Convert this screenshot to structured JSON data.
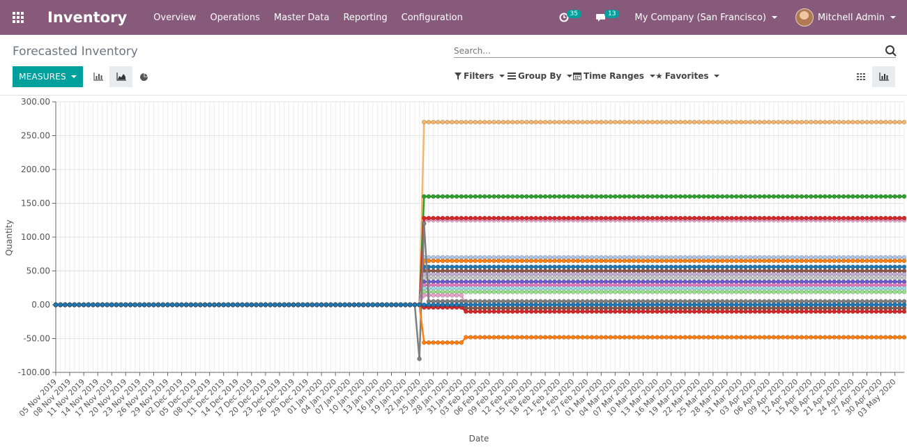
{
  "navbar": {
    "brand": "Inventory",
    "menu": [
      "Overview",
      "Operations",
      "Master Data",
      "Reporting",
      "Configuration"
    ],
    "activity_count": "35",
    "message_count": "13",
    "company": "My Company (San Francisco)",
    "user": "Mitchell Admin",
    "icons": {
      "apps": "apps-grid-icon",
      "activity": "clock-icon",
      "messages": "chat-icon"
    }
  },
  "control_panel": {
    "title": "Forecasted Inventory",
    "search_placeholder": "Search...",
    "measures_label": "MEASURES",
    "filters_label": "Filters",
    "group_by_label": "Group By",
    "time_ranges_label": "Time Ranges",
    "favorites_label": "Favorites",
    "active_chart_mode": "line",
    "active_view": "graph"
  },
  "colors": {
    "navbar": "#875a7b",
    "primary": "#00a09d"
  },
  "chart_data": {
    "type": "line",
    "xlabel": "Date",
    "ylabel": "Quantity",
    "ylim": [
      -100,
      300
    ],
    "yticks": [
      "300.00",
      "250.00",
      "200.00",
      "150.00",
      "100.00",
      "50.00",
      "0.00",
      "-50.00",
      "-100.00"
    ],
    "xticks": [
      "05 Nov 2019",
      "08 Nov 2019",
      "11 Nov 2019",
      "14 Nov 2019",
      "17 Nov 2019",
      "20 Nov 2019",
      "23 Nov 2019",
      "26 Nov 2019",
      "29 Nov 2019",
      "02 Dec 2019",
      "05 Dec 2019",
      "08 Dec 2019",
      "11 Dec 2019",
      "14 Dec 2019",
      "17 Dec 2019",
      "20 Dec 2019",
      "23 Dec 2019",
      "26 Dec 2019",
      "29 Dec 2019",
      "01 Jan 2020",
      "04 Jan 2020",
      "07 Jan 2020",
      "10 Jan 2020",
      "13 Jan 2020",
      "16 Jan 2020",
      "19 Jan 2020",
      "22 Jan 2020",
      "25 Jan 2020",
      "28 Jan 2020",
      "31 Jan 2020",
      "03 Feb 2020",
      "06 Feb 2020",
      "09 Feb 2020",
      "12 Feb 2020",
      "15 Feb 2020",
      "18 Feb 2020",
      "21 Feb 2020",
      "24 Feb 2020",
      "27 Feb 2020",
      "01 Mar 2020",
      "04 Mar 2020",
      "07 Mar 2020",
      "10 Mar 2020",
      "13 Mar 2020",
      "16 Mar 2020",
      "19 Mar 2020",
      "22 Mar 2020",
      "25 Mar 2020",
      "28 Mar 2020",
      "31 Mar 2020",
      "03 Apr 2020",
      "06 Apr 2020",
      "09 Apr 2020",
      "12 Apr 2020",
      "15 Apr 2020",
      "18 Apr 2020",
      "21 Apr 2020",
      "24 Apr 2020",
      "27 Apr 2020",
      "30 Apr 2020",
      "03 May 2020"
    ],
    "x_start": "2019-11-05",
    "x_end": "2020-05-05",
    "grid": true,
    "legend": "none",
    "series": [
      {
        "color": "#f4b46c",
        "points": [
          [
            "2019-11-05",
            0
          ],
          [
            "2020-01-22",
            0
          ],
          [
            "2020-01-23",
            270
          ],
          [
            "2020-05-05",
            270
          ]
        ]
      },
      {
        "color": "#2ca02c",
        "points": [
          [
            "2019-11-05",
            0
          ],
          [
            "2020-01-22",
            0
          ],
          [
            "2020-01-23",
            160
          ],
          [
            "2020-05-05",
            160
          ]
        ]
      },
      {
        "color": "#e8a0c8",
        "points": [
          [
            "2019-11-05",
            0
          ],
          [
            "2020-01-22",
            0
          ],
          [
            "2020-01-23",
            125
          ],
          [
            "2020-05-05",
            125
          ]
        ]
      },
      {
        "color": "#d62728",
        "points": [
          [
            "2019-11-05",
            0
          ],
          [
            "2020-01-22",
            0
          ],
          [
            "2020-01-23",
            128
          ],
          [
            "2020-05-05",
            128
          ]
        ]
      },
      {
        "color": "#aec7e8",
        "points": [
          [
            "2019-11-05",
            0
          ],
          [
            "2020-01-22",
            0
          ],
          [
            "2020-01-23",
            70
          ],
          [
            "2020-05-05",
            70
          ]
        ]
      },
      {
        "color": "#ff7f0e",
        "points": [
          [
            "2019-11-05",
            0
          ],
          [
            "2020-01-22",
            0
          ],
          [
            "2020-01-23",
            65
          ],
          [
            "2020-05-05",
            65
          ]
        ]
      },
      {
        "color": "#1f77b4",
        "points": [
          [
            "2019-11-05",
            0
          ],
          [
            "2020-01-22",
            0
          ],
          [
            "2020-01-23",
            56
          ],
          [
            "2020-05-05",
            56
          ]
        ]
      },
      {
        "color": "#8c564b",
        "points": [
          [
            "2019-11-05",
            0
          ],
          [
            "2020-01-22",
            0
          ],
          [
            "2020-01-23",
            50
          ],
          [
            "2020-05-05",
            50
          ]
        ]
      },
      {
        "color": "#c5b0d5",
        "points": [
          [
            "2019-11-05",
            0
          ],
          [
            "2020-01-22",
            0
          ],
          [
            "2020-01-23",
            45
          ],
          [
            "2020-05-05",
            45
          ]
        ]
      },
      {
        "color": "#c7c7c7",
        "points": [
          [
            "2019-11-05",
            0
          ],
          [
            "2020-01-22",
            0
          ],
          [
            "2020-01-23",
            40
          ],
          [
            "2020-05-05",
            40
          ]
        ]
      },
      {
        "color": "#6a5acd",
        "points": [
          [
            "2019-11-05",
            0
          ],
          [
            "2020-01-22",
            0
          ],
          [
            "2020-01-23",
            34
          ],
          [
            "2020-05-05",
            34
          ]
        ]
      },
      {
        "color": "#e377c2",
        "points": [
          [
            "2019-11-05",
            0
          ],
          [
            "2020-01-22",
            0
          ],
          [
            "2020-01-23",
            29
          ],
          [
            "2020-05-05",
            29
          ]
        ]
      },
      {
        "color": "#9edae5",
        "points": [
          [
            "2019-11-05",
            0
          ],
          [
            "2020-01-22",
            0
          ],
          [
            "2020-01-23",
            24
          ],
          [
            "2020-05-05",
            24
          ]
        ]
      },
      {
        "color": "#98df8a",
        "points": [
          [
            "2019-11-05",
            0
          ],
          [
            "2020-01-22",
            0
          ],
          [
            "2020-01-23",
            19
          ],
          [
            "2020-05-05",
            19
          ]
        ]
      },
      {
        "color": "#e8a0c8",
        "points": [
          [
            "2019-11-05",
            0
          ],
          [
            "2020-01-22",
            0
          ],
          [
            "2020-01-23",
            14
          ],
          [
            "2020-01-31",
            14
          ],
          [
            "2020-02-01",
            0
          ],
          [
            "2020-05-05",
            0
          ]
        ]
      },
      {
        "color": "#7f7f7f",
        "points": [
          [
            "2019-11-05",
            0
          ],
          [
            "2020-01-21",
            0
          ],
          [
            "2020-01-22",
            -80
          ],
          [
            "2020-01-23",
            120
          ],
          [
            "2020-01-24",
            5
          ],
          [
            "2020-05-05",
            5
          ]
        ]
      },
      {
        "color": "#8c564b",
        "points": [
          [
            "2019-11-05",
            0
          ],
          [
            "2020-01-22",
            0
          ],
          [
            "2020-01-23",
            -2
          ],
          [
            "2020-01-31",
            -2
          ],
          [
            "2020-02-01",
            -5
          ],
          [
            "2020-05-05",
            -5
          ]
        ]
      },
      {
        "color": "#d62728",
        "points": [
          [
            "2019-11-05",
            0
          ],
          [
            "2020-01-22",
            0
          ],
          [
            "2020-01-23",
            -4
          ],
          [
            "2020-01-31",
            -4
          ],
          [
            "2020-02-01",
            -10
          ],
          [
            "2020-05-05",
            -10
          ]
        ]
      },
      {
        "color": "#ff7f0e",
        "points": [
          [
            "2019-11-05",
            0
          ],
          [
            "2020-01-22",
            0
          ],
          [
            "2020-01-23",
            -56
          ],
          [
            "2020-01-31",
            -56
          ],
          [
            "2020-02-01",
            -48
          ],
          [
            "2020-05-05",
            -48
          ]
        ]
      },
      {
        "color": "#1f77b4",
        "points": [
          [
            "2019-11-05",
            0
          ],
          [
            "2020-05-05",
            0
          ]
        ]
      }
    ]
  }
}
